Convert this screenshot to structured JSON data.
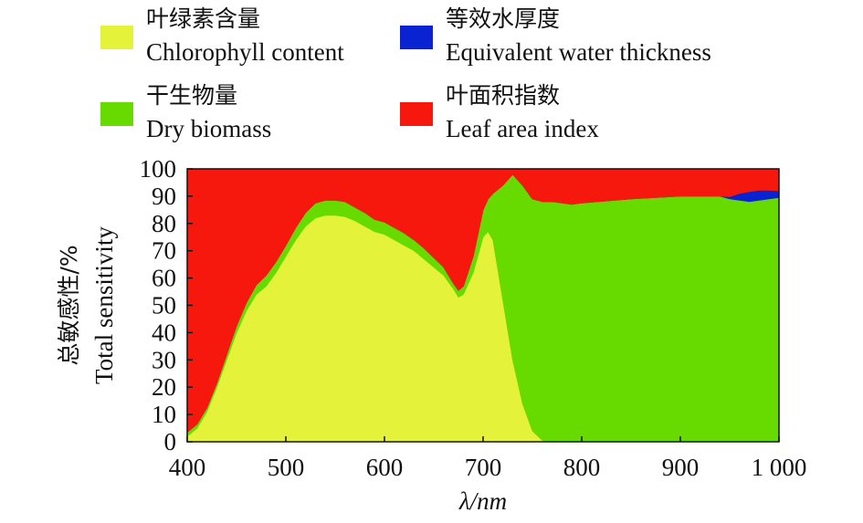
{
  "chart_data": {
    "type": "area",
    "stacked": true,
    "xlabel": "λ/nm",
    "ylabel_cn": "总敏感性/%",
    "ylabel_en": "Total sensitivity",
    "xlim": [
      400,
      1000
    ],
    "ylim": [
      0,
      100
    ],
    "x_ticks": [
      400,
      500,
      600,
      700,
      800,
      900,
      1000
    ],
    "x_tick_labels": [
      "400",
      "500",
      "600",
      "700",
      "800",
      "900",
      "1 000"
    ],
    "y_ticks": [
      0,
      10,
      20,
      30,
      40,
      50,
      60,
      70,
      80,
      90,
      100
    ],
    "y_tick_labels": [
      "0",
      "10",
      "20",
      "30",
      "40",
      "50",
      "60",
      "70",
      "80",
      "90",
      "100"
    ],
    "grid": false,
    "legend_placement": "top",
    "x": [
      400,
      410,
      420,
      430,
      440,
      450,
      460,
      470,
      480,
      490,
      500,
      510,
      520,
      530,
      540,
      550,
      560,
      570,
      580,
      590,
      600,
      610,
      620,
      630,
      640,
      650,
      660,
      670,
      675,
      680,
      690,
      700,
      705,
      710,
      720,
      730,
      740,
      750,
      760,
      770,
      780,
      790,
      800,
      850,
      900,
      940,
      950,
      960,
      970,
      980,
      990,
      1000
    ],
    "series": [
      {
        "name_cn": "叶绿素含量",
        "name": "Chlorophyll content",
        "color": "#e4f23a",
        "values": [
          2,
          5,
          11,
          20,
          30,
          40,
          48,
          54,
          57,
          62,
          68,
          74,
          79,
          82,
          83,
          83,
          82.5,
          81,
          79,
          77,
          76,
          74,
          72,
          70,
          67,
          64,
          61,
          56,
          53,
          54,
          62,
          75,
          77,
          74,
          52,
          30,
          14,
          4,
          0.5,
          0,
          0,
          0,
          0,
          0,
          0,
          0,
          0,
          0,
          0,
          0,
          0,
          0
        ]
      },
      {
        "name_cn": "干生物量",
        "name": "Dry biomass",
        "color": "#67db00",
        "values": [
          1.5,
          1.5,
          1.5,
          1.5,
          2,
          2.5,
          3,
          3.5,
          4,
          4,
          4,
          4.5,
          5,
          5.5,
          5.5,
          5.5,
          5.5,
          5,
          5,
          4.5,
          4.5,
          4.5,
          4.5,
          4,
          4,
          3.5,
          3,
          2,
          2.5,
          3,
          6,
          10,
          12,
          17,
          42,
          68,
          80,
          85,
          87.5,
          88,
          87.5,
          87,
          87.5,
          89,
          90,
          90,
          89,
          88.5,
          88,
          88.5,
          89,
          89.5
        ]
      },
      {
        "name_cn": "等效水厚度",
        "name": "Equivalent water thickness",
        "color": "#0a23d2",
        "values": [
          0,
          0,
          0,
          0,
          0,
          0,
          0,
          0,
          0,
          0,
          0,
          0,
          0,
          0,
          0,
          0,
          0,
          0,
          0,
          0,
          0,
          0,
          0,
          0,
          0,
          0,
          0,
          0,
          0,
          0,
          0,
          0,
          0,
          0,
          0,
          0,
          0,
          0,
          0,
          0,
          0,
          0,
          0,
          0,
          0,
          0,
          0.8,
          2.5,
          3.7,
          3.7,
          3.2,
          2.5
        ]
      },
      {
        "name_cn": "叶面积指数",
        "name": "Leaf area index",
        "color": "#f7180d",
        "values": [
          96.5,
          93.5,
          87.5,
          78.5,
          68,
          57.5,
          49,
          42.5,
          39,
          34,
          28,
          21.5,
          16,
          12.5,
          11.5,
          11.5,
          12,
          14,
          16,
          18.5,
          19.5,
          21.5,
          23.5,
          26,
          29,
          32.5,
          36,
          42,
          44.5,
          43,
          32,
          15,
          11,
          9,
          6,
          2,
          6,
          11,
          12,
          12,
          12.5,
          13,
          12.5,
          11,
          10,
          10,
          10.2,
          9,
          8.3,
          7.8,
          7.8,
          8
        ]
      }
    ]
  }
}
